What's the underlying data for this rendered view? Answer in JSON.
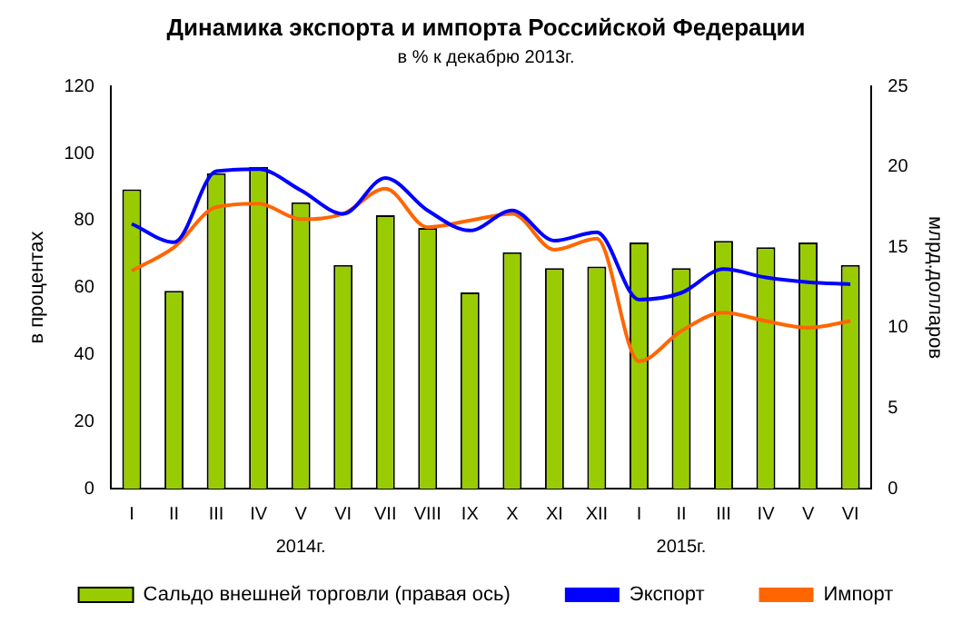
{
  "chart_data": {
    "type": "bar",
    "title": "Динамика экспорта и импорта Российской Федерации",
    "subtitle": "в % к декабрю 2013г.",
    "ylabel": "в процентах",
    "y2label": "млрд.долларов",
    "categories": [
      "I",
      "II",
      "III",
      "IV",
      "V",
      "VI",
      "VII",
      "VIII",
      "IX",
      "X",
      "XI",
      "XII",
      "I",
      "II",
      "III",
      "IV",
      "V",
      "VI"
    ],
    "series": [
      {
        "name": "Сальдо внешней торговли (правая ось)",
        "axis": "y2",
        "color": "#99cc00",
        "values": [
          18.6,
          12.3,
          19.6,
          20,
          17.8,
          13.9,
          17,
          16.2,
          12.2,
          14.7,
          13.7,
          13.8,
          15.3,
          13.7,
          15.4,
          15,
          15.3,
          13.9
        ]
      },
      {
        "name": "Экспорт",
        "type": "line",
        "color": "#0000ff",
        "values": [
          79,
          73.5,
          94.7,
          95.3,
          89,
          82,
          92.7,
          83,
          77,
          83,
          74,
          76.5,
          56.4,
          58.4,
          65.5,
          63,
          61.6,
          61
        ]
      },
      {
        "name": "Импорт",
        "type": "line",
        "color": "#ff6600",
        "values": [
          65,
          72,
          84,
          85,
          80.4,
          82,
          89.5,
          78,
          80,
          82,
          71.3,
          74.6,
          38,
          47,
          52.5,
          50,
          48,
          50
        ]
      }
    ],
    "ylim": [
      0,
      120
    ],
    "yticks": [
      0,
      20,
      40,
      60,
      80,
      100,
      120
    ],
    "y2lim": [
      0,
      25
    ],
    "y2ticks": [
      0,
      5,
      10,
      15,
      20,
      25
    ],
    "grid": false,
    "legend": "bottom",
    "marker": "none",
    "line_style": "solid",
    "annotations": [
      "2014г.",
      "2015г."
    ]
  }
}
